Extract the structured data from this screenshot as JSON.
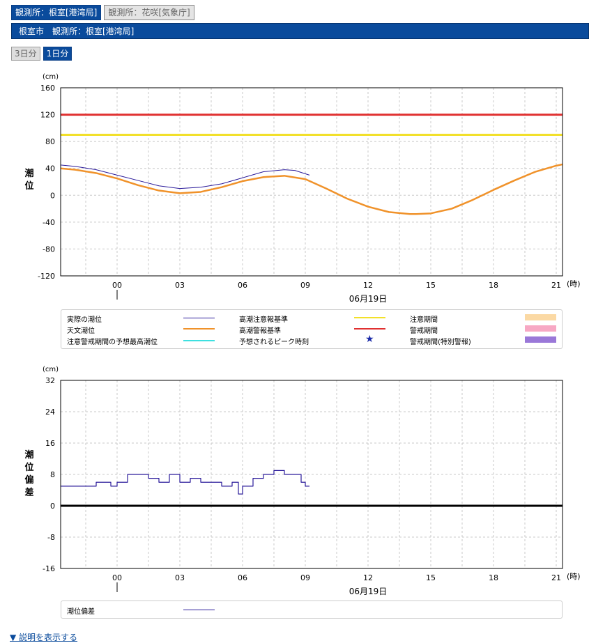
{
  "station_tabs": [
    {
      "label": "観測所：根室[港湾局]",
      "active": true
    },
    {
      "label": "観測所：花咲[気象庁]",
      "active": false
    }
  ],
  "title_bar": "根室市　観測所：根室[港湾局]",
  "range_buttons": [
    {
      "label": "3日分",
      "active": false
    },
    {
      "label": "1日分",
      "active": true
    }
  ],
  "colors": {
    "accent": "#0a4b9c",
    "observed": "#2a1a9a",
    "astronomical": "#f0922a",
    "advisory": "#f2e02a",
    "warning": "#e03030",
    "predicted_max": "#3ee0e0",
    "peak_star": "#1a2aa8",
    "advisory_period": "#fbd9a4",
    "warning_period": "#f7a8c4",
    "special_warning_period": "#9a78d8"
  },
  "chart_data": [
    {
      "type": "line",
      "unit_label": "(cm)",
      "ylabel": "潮位",
      "ylim": [
        -120,
        160
      ],
      "yticks": [
        160,
        120,
        80,
        40,
        0,
        -40,
        -80,
        -120
      ],
      "xlim": [
        -2.7,
        21.3
      ],
      "xticks": [
        "00",
        "03",
        "06",
        "09",
        "12",
        "15",
        "18",
        "21"
      ],
      "x_unit": "(時)",
      "date_label": "06月19日",
      "advisory_level": 90,
      "warning_level": 120,
      "series": [
        {
          "name": "実際の潮位",
          "x": [
            -2.7,
            -2,
            -1,
            0,
            1,
            2,
            3,
            4,
            5,
            6,
            7,
            8,
            8.5,
            9.2
          ],
          "y": [
            45,
            43,
            38,
            30,
            22,
            14,
            10,
            12,
            17,
            26,
            35,
            38,
            37,
            30
          ]
        },
        {
          "name": "天文潮位",
          "x": [
            -2.7,
            -2,
            -1,
            0,
            1,
            2,
            3,
            4,
            5,
            6,
            7,
            8,
            9,
            10,
            11,
            12,
            13,
            14,
            14.3,
            15,
            16,
            17,
            18,
            19,
            20,
            21,
            21.3
          ],
          "y": [
            40,
            38,
            33,
            25,
            15,
            7,
            3,
            5,
            12,
            21,
            27,
            29,
            24,
            10,
            -5,
            -17,
            -25,
            -28,
            -28,
            -27,
            -20,
            -7,
            8,
            22,
            35,
            44,
            46
          ]
        }
      ]
    },
    {
      "type": "line",
      "unit_label": "(cm)",
      "ylabel": "潮位偏差",
      "ylim": [
        -16,
        32
      ],
      "yticks": [
        32,
        24,
        16,
        8,
        0,
        -8,
        -16
      ],
      "xlim": [
        -2.7,
        21.3
      ],
      "xticks": [
        "00",
        "03",
        "06",
        "09",
        "12",
        "15",
        "18",
        "21"
      ],
      "x_unit": "(時)",
      "date_label": "06月19日",
      "series": [
        {
          "name": "潮位偏差",
          "x": [
            -2.7,
            -2,
            -1,
            -0.3,
            0,
            0.5,
            1,
            1.5,
            2,
            2.5,
            3,
            3.5,
            4,
            4.5,
            5,
            5.5,
            5.8,
            6,
            6.5,
            7,
            7.5,
            8,
            8.5,
            8.8,
            9,
            9.2
          ],
          "y": [
            5,
            5,
            6,
            5,
            6,
            8,
            8,
            7,
            6,
            8,
            6,
            7,
            6,
            6,
            5,
            6,
            3,
            5,
            7,
            8,
            9,
            8,
            8,
            6,
            5,
            5
          ]
        }
      ]
    }
  ],
  "legend1": [
    {
      "label": "実際の潮位",
      "kind": "line",
      "color": "#2a1a9a"
    },
    {
      "label": "天文潮位",
      "kind": "line",
      "color": "#f0922a"
    },
    {
      "label": "注意警戒期間の予想最高潮位",
      "kind": "line",
      "color": "#3ee0e0"
    },
    {
      "label": "高潮注意報基準",
      "kind": "line",
      "color": "#f2e02a"
    },
    {
      "label": "高潮警報基準",
      "kind": "line",
      "color": "#e03030"
    },
    {
      "label": "予想されるピーク時刻",
      "kind": "star",
      "color": "#1a2aa8",
      "symbol": "★"
    },
    {
      "label": "注意期間",
      "kind": "box",
      "color": "#fbd9a4"
    },
    {
      "label": "警戒期間",
      "kind": "box",
      "color": "#f7a8c4"
    },
    {
      "label": "警戒期間(特別警報)",
      "kind": "box",
      "color": "#9a78d8"
    }
  ],
  "legend2": [
    {
      "label": "潮位偏差",
      "kind": "line",
      "color": "#2a1a9a"
    }
  ],
  "explain_link": "▼ 説明を表示する"
}
